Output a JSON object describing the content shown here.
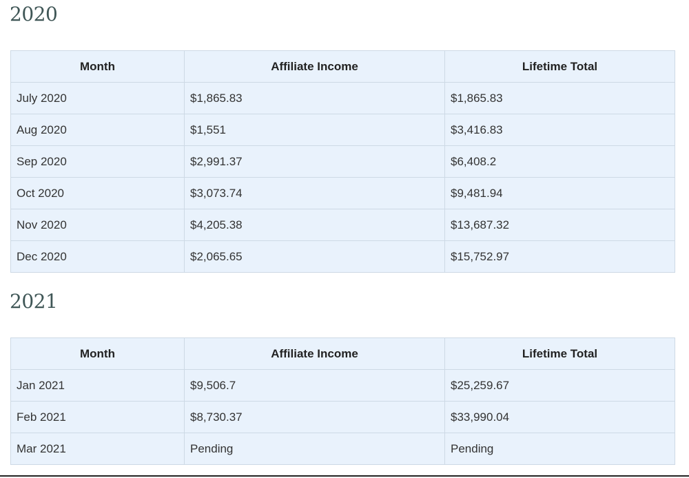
{
  "sections": [
    {
      "heading": "2020",
      "table": {
        "header": [
          "Month",
          "Affiliate Income",
          "Lifetime Total"
        ],
        "rows": [
          [
            "July 2020",
            "$1,865.83",
            "$1,865.83"
          ],
          [
            "Aug 2020",
            "$1,551",
            "$3,416.83"
          ],
          [
            "Sep 2020",
            "$2,991.37",
            "$6,408.2"
          ],
          [
            "Oct 2020",
            "$3,073.74",
            "$9,481.94"
          ],
          [
            "Nov 2020",
            "$4,205.38",
            "$13,687.32"
          ],
          [
            "Dec 2020",
            "$2,065.65",
            "$15,752.97"
          ]
        ]
      }
    },
    {
      "heading": "2021",
      "table": {
        "header": [
          "Month",
          "Affiliate Income",
          "Lifetime Total"
        ],
        "rows": [
          [
            "Jan 2021",
            "$9,506.7",
            "$25,259.67"
          ],
          [
            "Feb 2021",
            "$8,730.37",
            "$33,990.04"
          ],
          [
            "Mar 2021",
            "Pending",
            "Pending"
          ]
        ]
      }
    }
  ]
}
